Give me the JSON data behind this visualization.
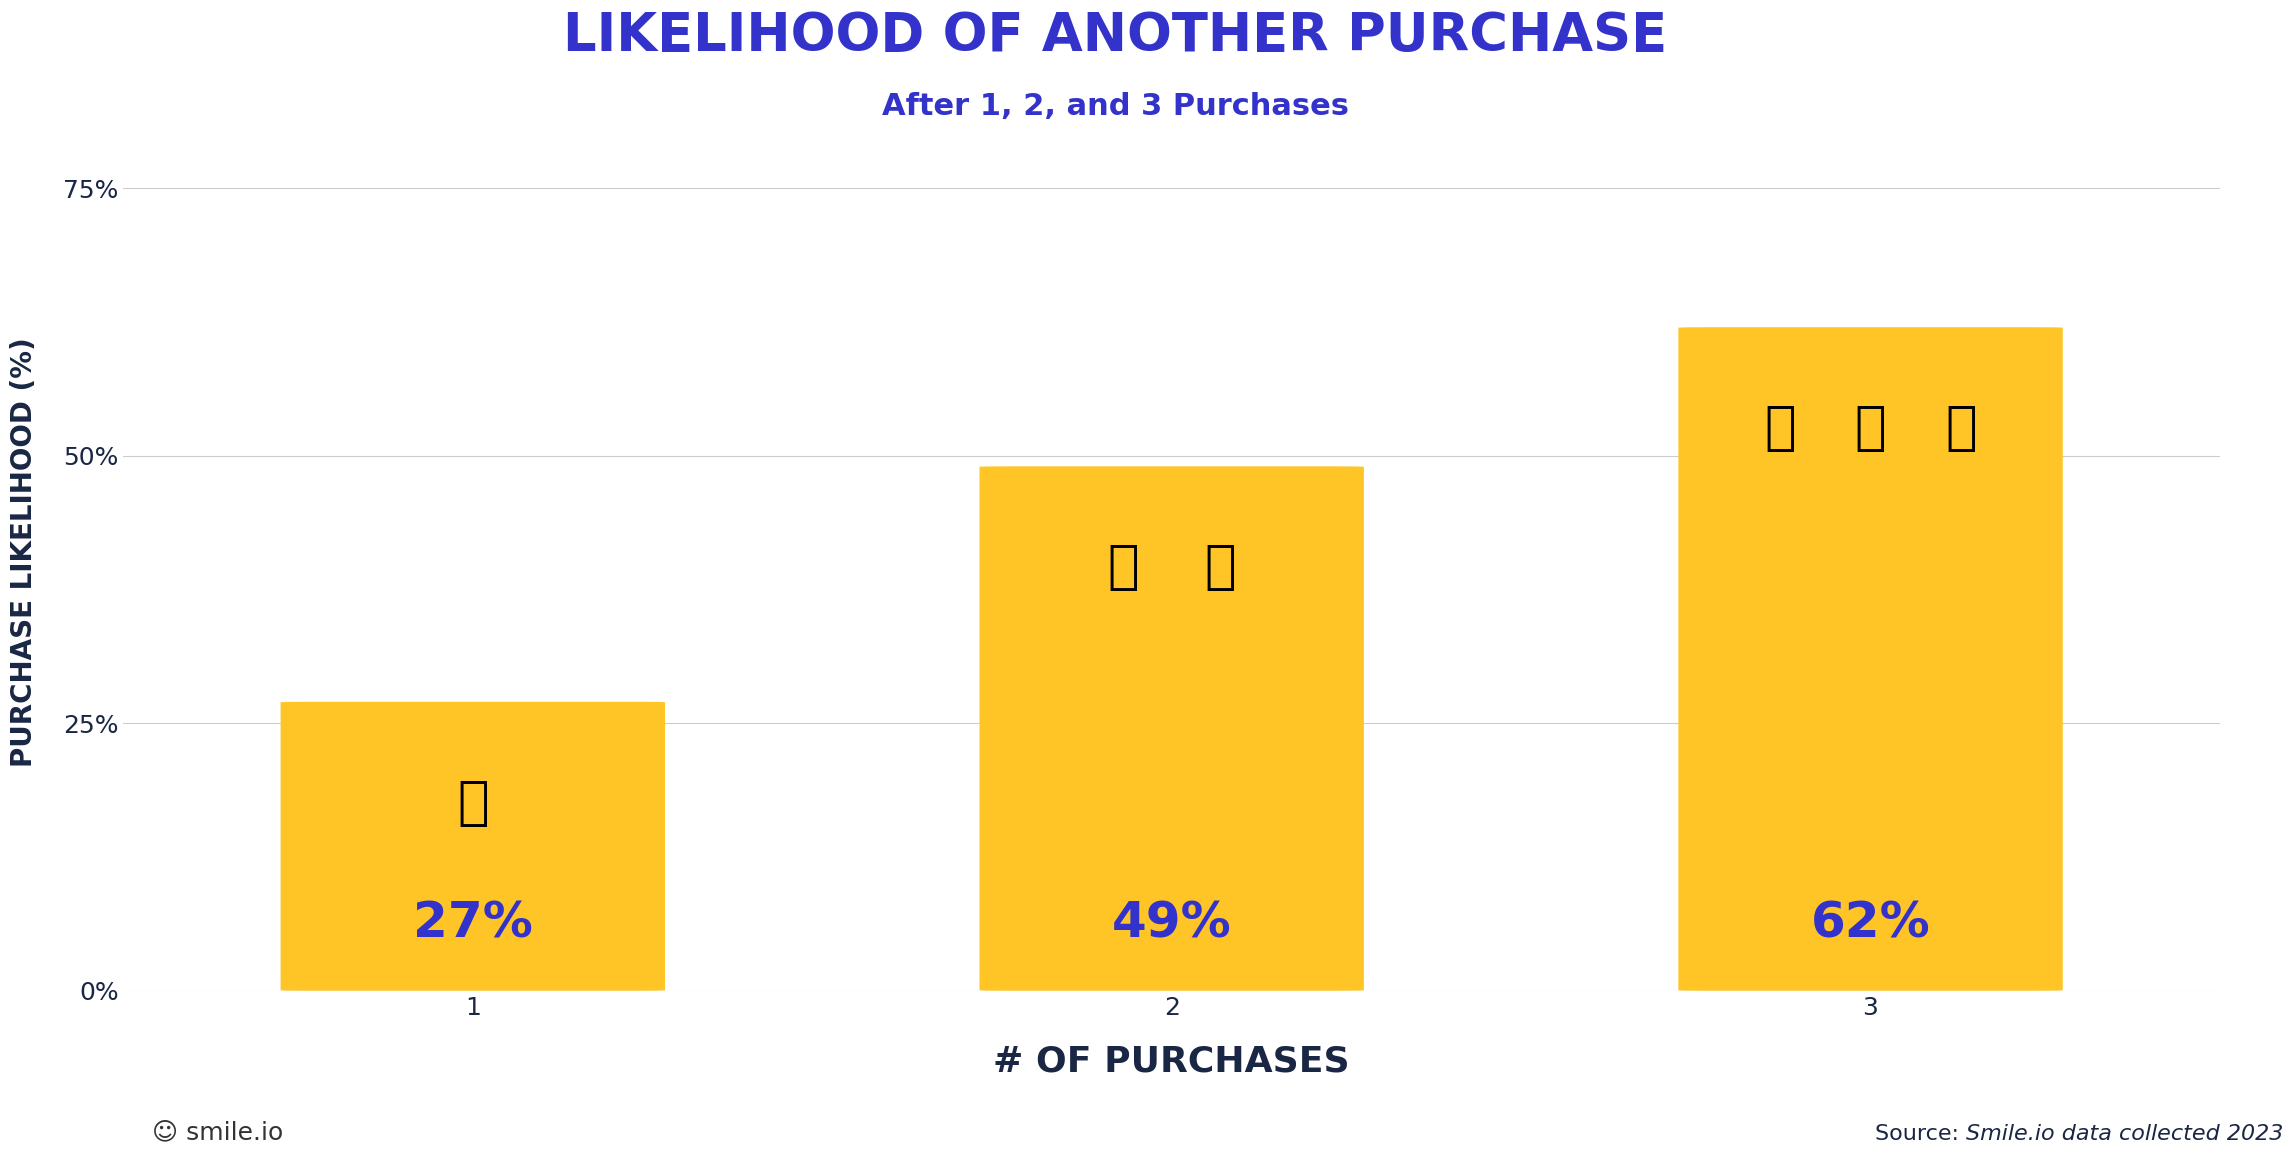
{
  "title": "LIKELIHOOD OF ANOTHER PURCHASE",
  "subtitle": "After 1, 2, and 3 Purchases",
  "categories": [
    "1",
    "2",
    "3"
  ],
  "values": [
    27,
    49,
    62
  ],
  "value_labels": [
    "27%",
    "49%",
    "62%"
  ],
  "bar_color": "#FFC425",
  "bar_color_edge": "#FFC425",
  "text_color": "#3333CC",
  "title_color": "#3333CC",
  "subtitle_color": "#3333CC",
  "xlabel": "# OF PURCHASES",
  "ylabel": "PURCHASE LIKELIHOOD (%)",
  "xlabel_color": "#1a2744",
  "ylabel_color": "#1a2744",
  "yticks": [
    0,
    25,
    50,
    75
  ],
  "ytick_labels": [
    "0%",
    "25%",
    "50%",
    "75%"
  ],
  "ylim": [
    0,
    82
  ],
  "background_color": "#ffffff",
  "grid_color": "#cccccc",
  "source_text": "Source: ",
  "source_italic": "Smile.io data collected 2023",
  "source_color": "#1a2744",
  "smile_text": "smile.io",
  "title_fontsize": 38,
  "subtitle_fontsize": 22,
  "xlabel_fontsize": 26,
  "ylabel_fontsize": 20,
  "tick_fontsize": 18,
  "value_label_fontsize": 36,
  "source_fontsize": 16
}
